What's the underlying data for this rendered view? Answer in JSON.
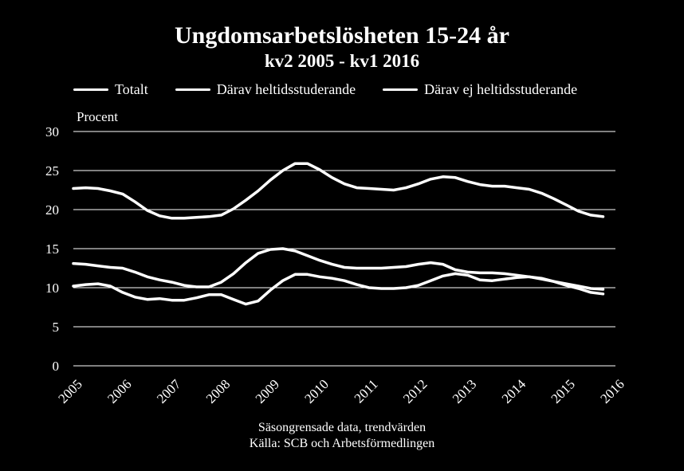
{
  "chart_data": {
    "type": "line",
    "title": "Ungdomsarbetslösheten 15-24 år",
    "subtitle": "kv2 2005 - kv1 2016",
    "ylabel": "Procent",
    "ylim": [
      0,
      30
    ],
    "yticks": [
      "0",
      "5",
      "10",
      "15",
      "20",
      "25",
      "30"
    ],
    "xticks": [
      "2005",
      "2006",
      "2007",
      "2008",
      "2009",
      "2010",
      "2011",
      "2012",
      "2013",
      "2014",
      "2015",
      "2016"
    ],
    "x_start": 2005.0,
    "x_step": 0.25,
    "grid": true,
    "legend_position": "top",
    "series": [
      {
        "name": "Totalt",
        "values": [
          22.7,
          22.8,
          22.7,
          22.4,
          22.0,
          21.0,
          19.9,
          19.2,
          18.9,
          18.9,
          19.0,
          19.1,
          19.3,
          20.1,
          21.2,
          22.4,
          23.8,
          25.0,
          25.9,
          25.9,
          25.1,
          24.1,
          23.3,
          22.8,
          22.7,
          22.6,
          22.5,
          22.8,
          23.3,
          23.9,
          24.2,
          24.1,
          23.6,
          23.2,
          23.0,
          23.0,
          22.8,
          22.6,
          22.1,
          21.4,
          20.6,
          19.8,
          19.3,
          19.1
        ]
      },
      {
        "name": "Därav heltidsstuderande",
        "values": [
          13.1,
          13.0,
          12.8,
          12.6,
          12.5,
          12.0,
          11.4,
          11.0,
          10.7,
          10.3,
          10.1,
          10.1,
          10.7,
          11.8,
          13.2,
          14.4,
          14.9,
          15.0,
          14.7,
          14.1,
          13.5,
          13.0,
          12.6,
          12.5,
          12.5,
          12.5,
          12.6,
          12.7,
          13.0,
          13.2,
          13.0,
          12.3,
          12.0,
          11.9,
          11.9,
          11.8,
          11.6,
          11.4,
          11.1,
          10.8,
          10.5,
          10.2,
          9.9,
          9.8
        ]
      },
      {
        "name": "Därav ej heltidsstuderande",
        "values": [
          10.2,
          10.4,
          10.5,
          10.2,
          9.4,
          8.8,
          8.5,
          8.6,
          8.4,
          8.4,
          8.7,
          9.1,
          9.1,
          8.5,
          7.9,
          8.3,
          9.7,
          10.9,
          11.7,
          11.7,
          11.4,
          11.2,
          10.9,
          10.4,
          10.0,
          9.9,
          9.9,
          10.0,
          10.3,
          10.9,
          11.5,
          11.8,
          11.6,
          11.0,
          10.9,
          11.1,
          11.3,
          11.4,
          11.2,
          10.8,
          10.3,
          9.9,
          9.4,
          9.2
        ]
      }
    ]
  },
  "footer": {
    "note": "Säsongrensade data, trendvärden",
    "source": "Källa: SCB och Arbetsförmedlingen"
  }
}
